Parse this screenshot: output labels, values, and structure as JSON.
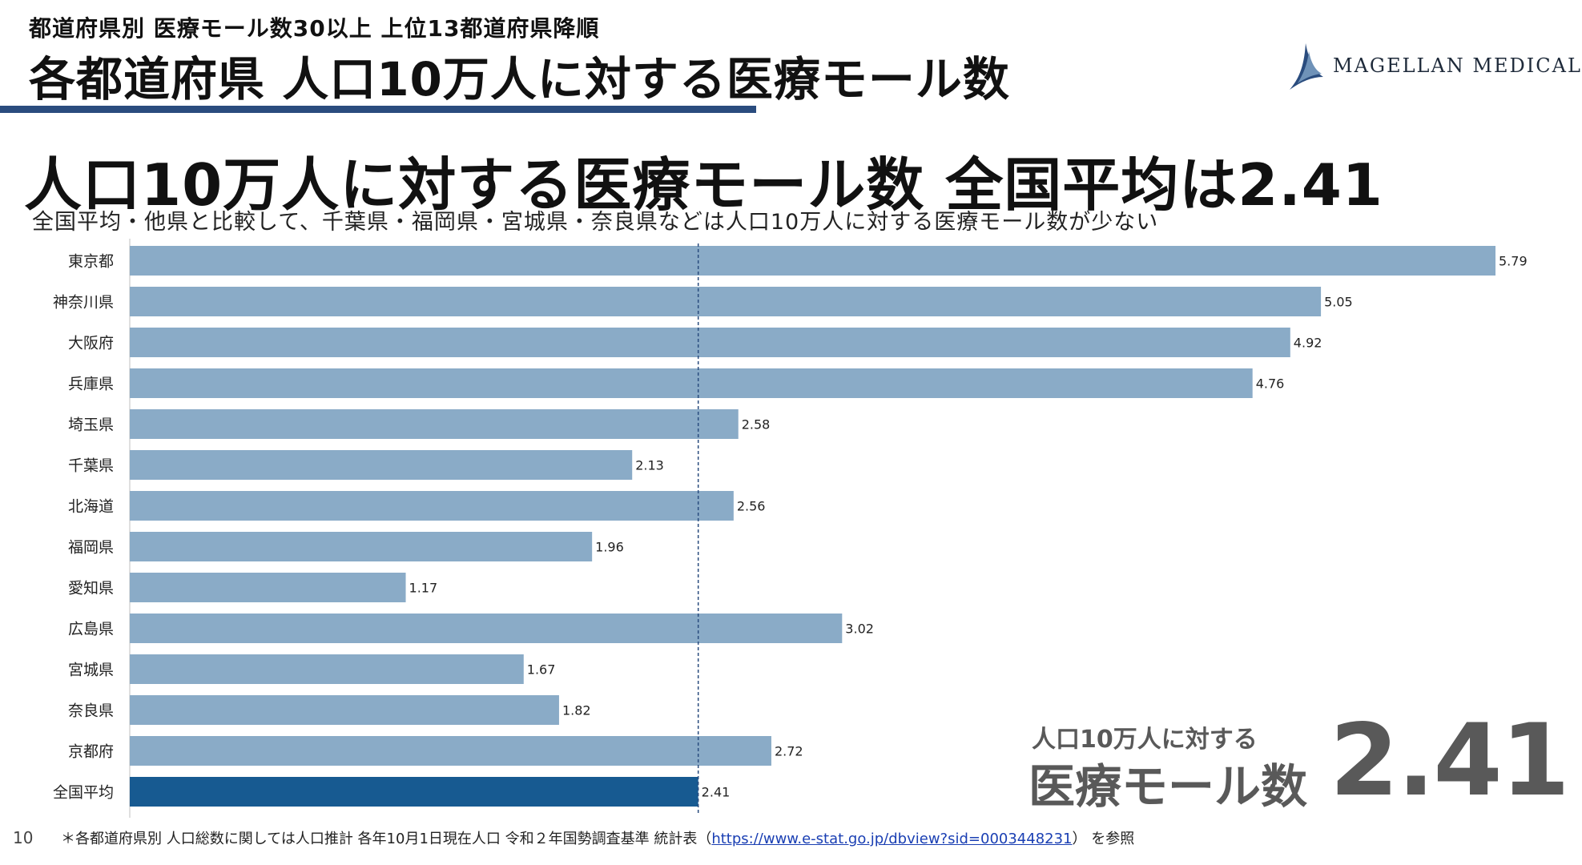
{
  "header": {
    "subtitle": "都道府県別 医療モール数30以上 上位13都道府県降順",
    "title": "各都道府県 人口10万人に対する医療モール数"
  },
  "logo": {
    "text": "MAGELLAN MEDICAL"
  },
  "headline": "人口10万人に対する医療モール数 全国平均は2.41",
  "description": "全国平均・他県と比較して、千葉県・福岡県・宮城県・奈良県などは人口10万人に対する医療モール数が少ない",
  "colors": {
    "bar": "#8aabc7",
    "average_bar": "#175a91",
    "rule": "#2a4c7e",
    "avg_line": "#2a4c7e"
  },
  "chart_data": {
    "type": "bar",
    "orientation": "horizontal",
    "categories": [
      "東京都",
      "神奈川県",
      "大阪府",
      "兵庫県",
      "埼玉県",
      "千葉県",
      "北海道",
      "福岡県",
      "愛知県",
      "広島県",
      "宮城県",
      "奈良県",
      "京都府",
      "全国平均"
    ],
    "values": [
      5.79,
      5.05,
      4.92,
      4.76,
      2.58,
      2.13,
      2.56,
      1.96,
      1.17,
      3.02,
      1.67,
      1.82,
      2.72,
      2.41
    ],
    "value_labels": [
      "5.79",
      "5.05",
      "4.92",
      "4.76",
      "2.58",
      "2.13",
      "2.56",
      "1.96",
      "1.17",
      "3.02",
      "1.67",
      "1.82",
      "2.72",
      "2.41"
    ],
    "highlight_category": "全国平均",
    "reference_line": 2.41,
    "xlim": [
      0,
      5.79
    ]
  },
  "callout": {
    "line1": "人口10万人に対する",
    "line2": "医療モール数",
    "value": "2.41"
  },
  "footer": {
    "page_number": "10",
    "note_prefix": "＊各都道府県別 人口総数に関しては人口推計 各年10月1日現在人口 令和２年国勢調査基準 統計表（",
    "note_link": "https://www.e-stat.go.jp/dbview?sid=0003448231",
    "note_suffix": "） を参照"
  }
}
